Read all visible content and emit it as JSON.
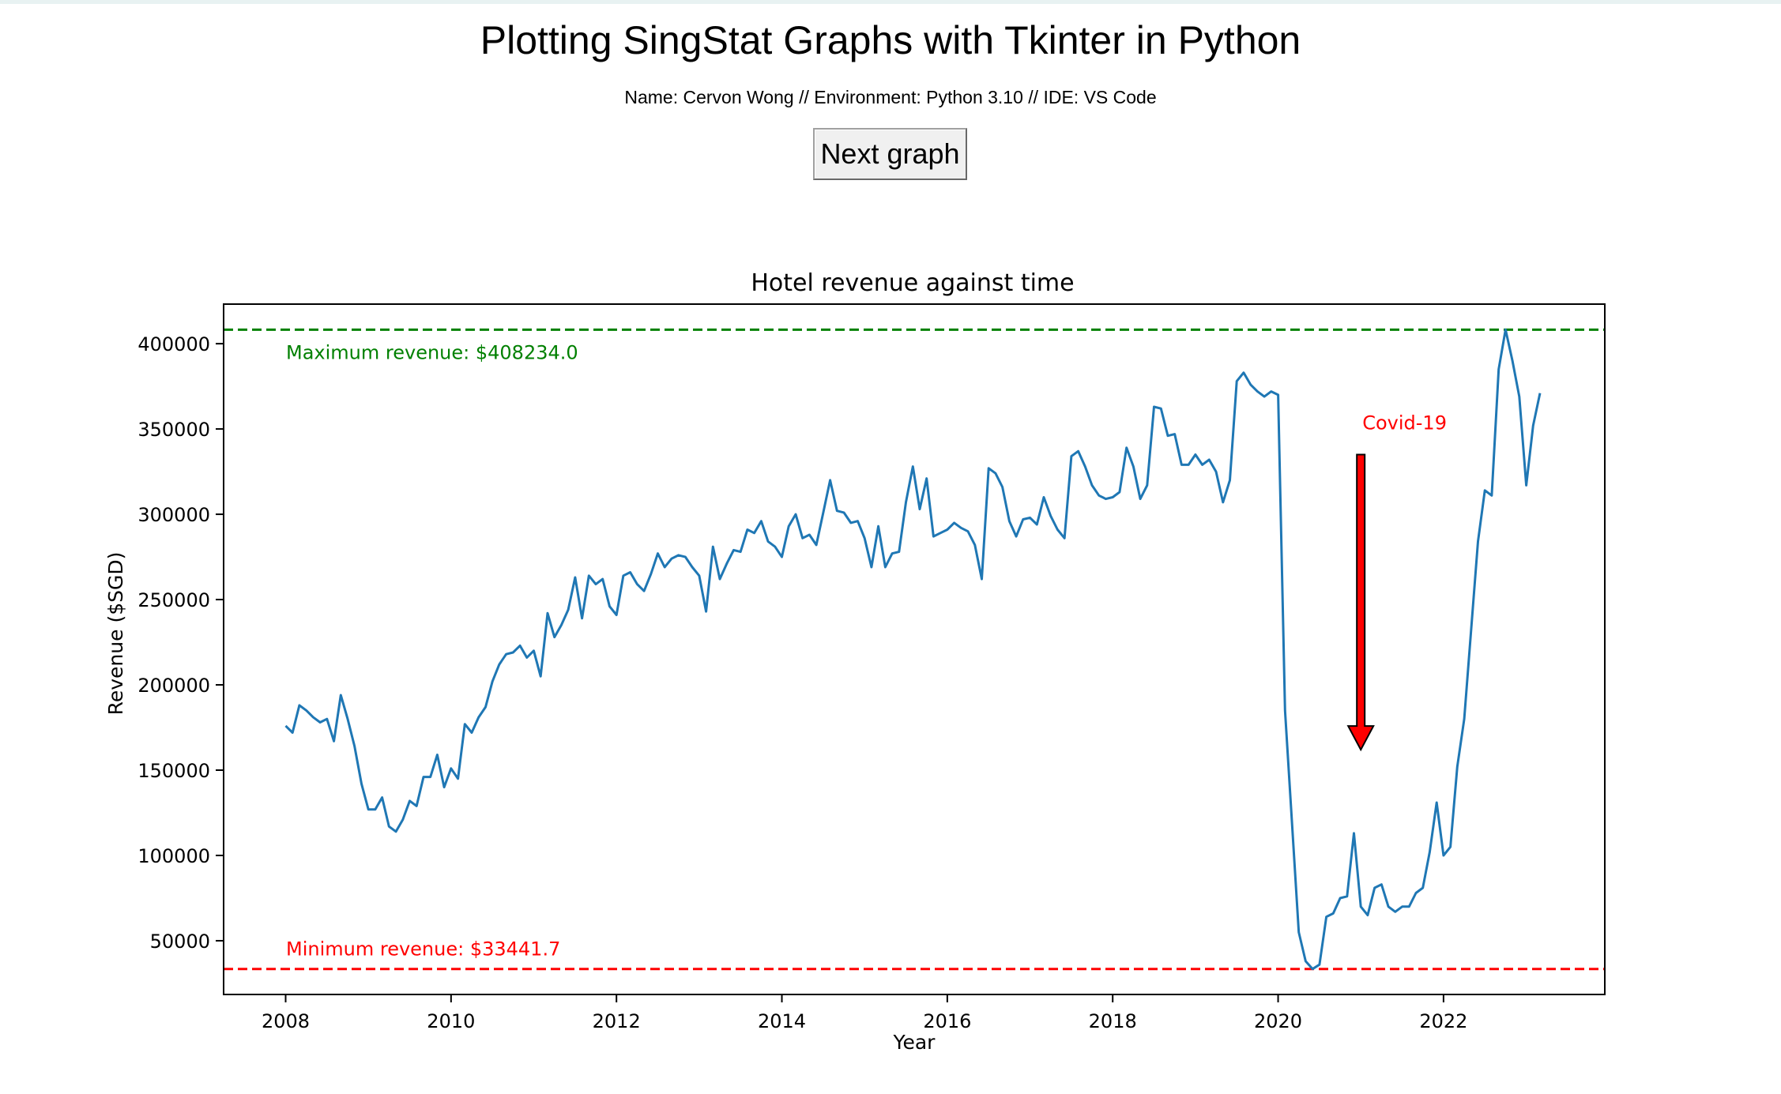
{
  "app": {
    "title": "Plotting SingStat Graphs with Tkinter in Python",
    "subtitle": "Name: Cervon Wong // Environment: Python 3.10 // IDE: VS Code",
    "next_button_label": "Next graph"
  },
  "chart_data": {
    "type": "line",
    "title": "Hotel revenue against time",
    "xlabel": "Year",
    "ylabel": "Revenue ($SGD)",
    "xlim": [
      2007.25,
      2023.95
    ],
    "ylim": [
      18500,
      423200
    ],
    "x_ticks": [
      2008,
      2010,
      2012,
      2014,
      2016,
      2018,
      2020,
      2022
    ],
    "y_ticks": [
      50000,
      100000,
      150000,
      200000,
      250000,
      300000,
      350000,
      400000
    ],
    "grid": false,
    "line_color": "#1f77b4",
    "series": [
      {
        "x_start": 2008.0,
        "x_step": 0.0833333,
        "values": [
          176000,
          172000,
          188000,
          185000,
          181000,
          178000,
          180000,
          167000,
          194000,
          180000,
          164000,
          142000,
          127000,
          127000,
          134000,
          117000,
          114000,
          121000,
          132000,
          129000,
          146000,
          146000,
          159000,
          140000,
          151000,
          145000,
          177000,
          172000,
          181000,
          187000,
          202000,
          212000,
          218000,
          219000,
          223000,
          216000,
          220000,
          205000,
          242000,
          228000,
          235000,
          244000,
          263000,
          239000,
          264000,
          259000,
          262000,
          246000,
          241000,
          264000,
          266000,
          259000,
          255000,
          265000,
          277000,
          269000,
          274000,
          276000,
          275000,
          269000,
          264000,
          243000,
          281000,
          262000,
          271000,
          279000,
          278000,
          291000,
          289000,
          296000,
          284000,
          281000,
          275000,
          293000,
          300000,
          286000,
          288000,
          282000,
          301000,
          320000,
          302000,
          301000,
          295000,
          296000,
          286000,
          269000,
          293000,
          269000,
          277000,
          278000,
          307000,
          328000,
          303000,
          321000,
          287000,
          289000,
          291000,
          295000,
          292000,
          290000,
          282000,
          262000,
          327000,
          324000,
          316000,
          296000,
          287000,
          297000,
          298000,
          294000,
          310000,
          299000,
          291000,
          286000,
          334000,
          337000,
          328000,
          317000,
          311000,
          309000,
          310000,
          313000,
          339000,
          328000,
          309000,
          317000,
          363000,
          362000,
          346000,
          347000,
          329000,
          329000,
          335000,
          329000,
          332000,
          325000,
          307000,
          320000,
          378000,
          383000,
          376000,
          372000,
          369000,
          372000,
          370000,
          185000,
          120000,
          55000,
          38000,
          33441.7,
          36000,
          64000,
          66000,
          75000,
          76000,
          113000,
          70000,
          65000,
          81000,
          83000,
          70000,
          67000,
          70000,
          70000,
          78000,
          81000,
          102000,
          131000,
          100000,
          105000,
          152000,
          180000,
          232000,
          284000,
          314000,
          311000,
          385000,
          408234.0,
          390000,
          369000,
          317000,
          352000,
          371000
        ]
      }
    ],
    "reference_lines": [
      {
        "value": 408234.0,
        "color": "#008000",
        "label": "Maximum revenue: $408234.0"
      },
      {
        "value": 33441.7,
        "color": "#ff0000",
        "label": "Minimum revenue: $33441.7"
      }
    ],
    "annotation": {
      "text": "Covid-19",
      "color": "#ff0000",
      "arrow_fill": "#ff0000",
      "arrow_x": 2021.0,
      "arrow_y_start": 335000,
      "arrow_y_end": 162000
    }
  }
}
